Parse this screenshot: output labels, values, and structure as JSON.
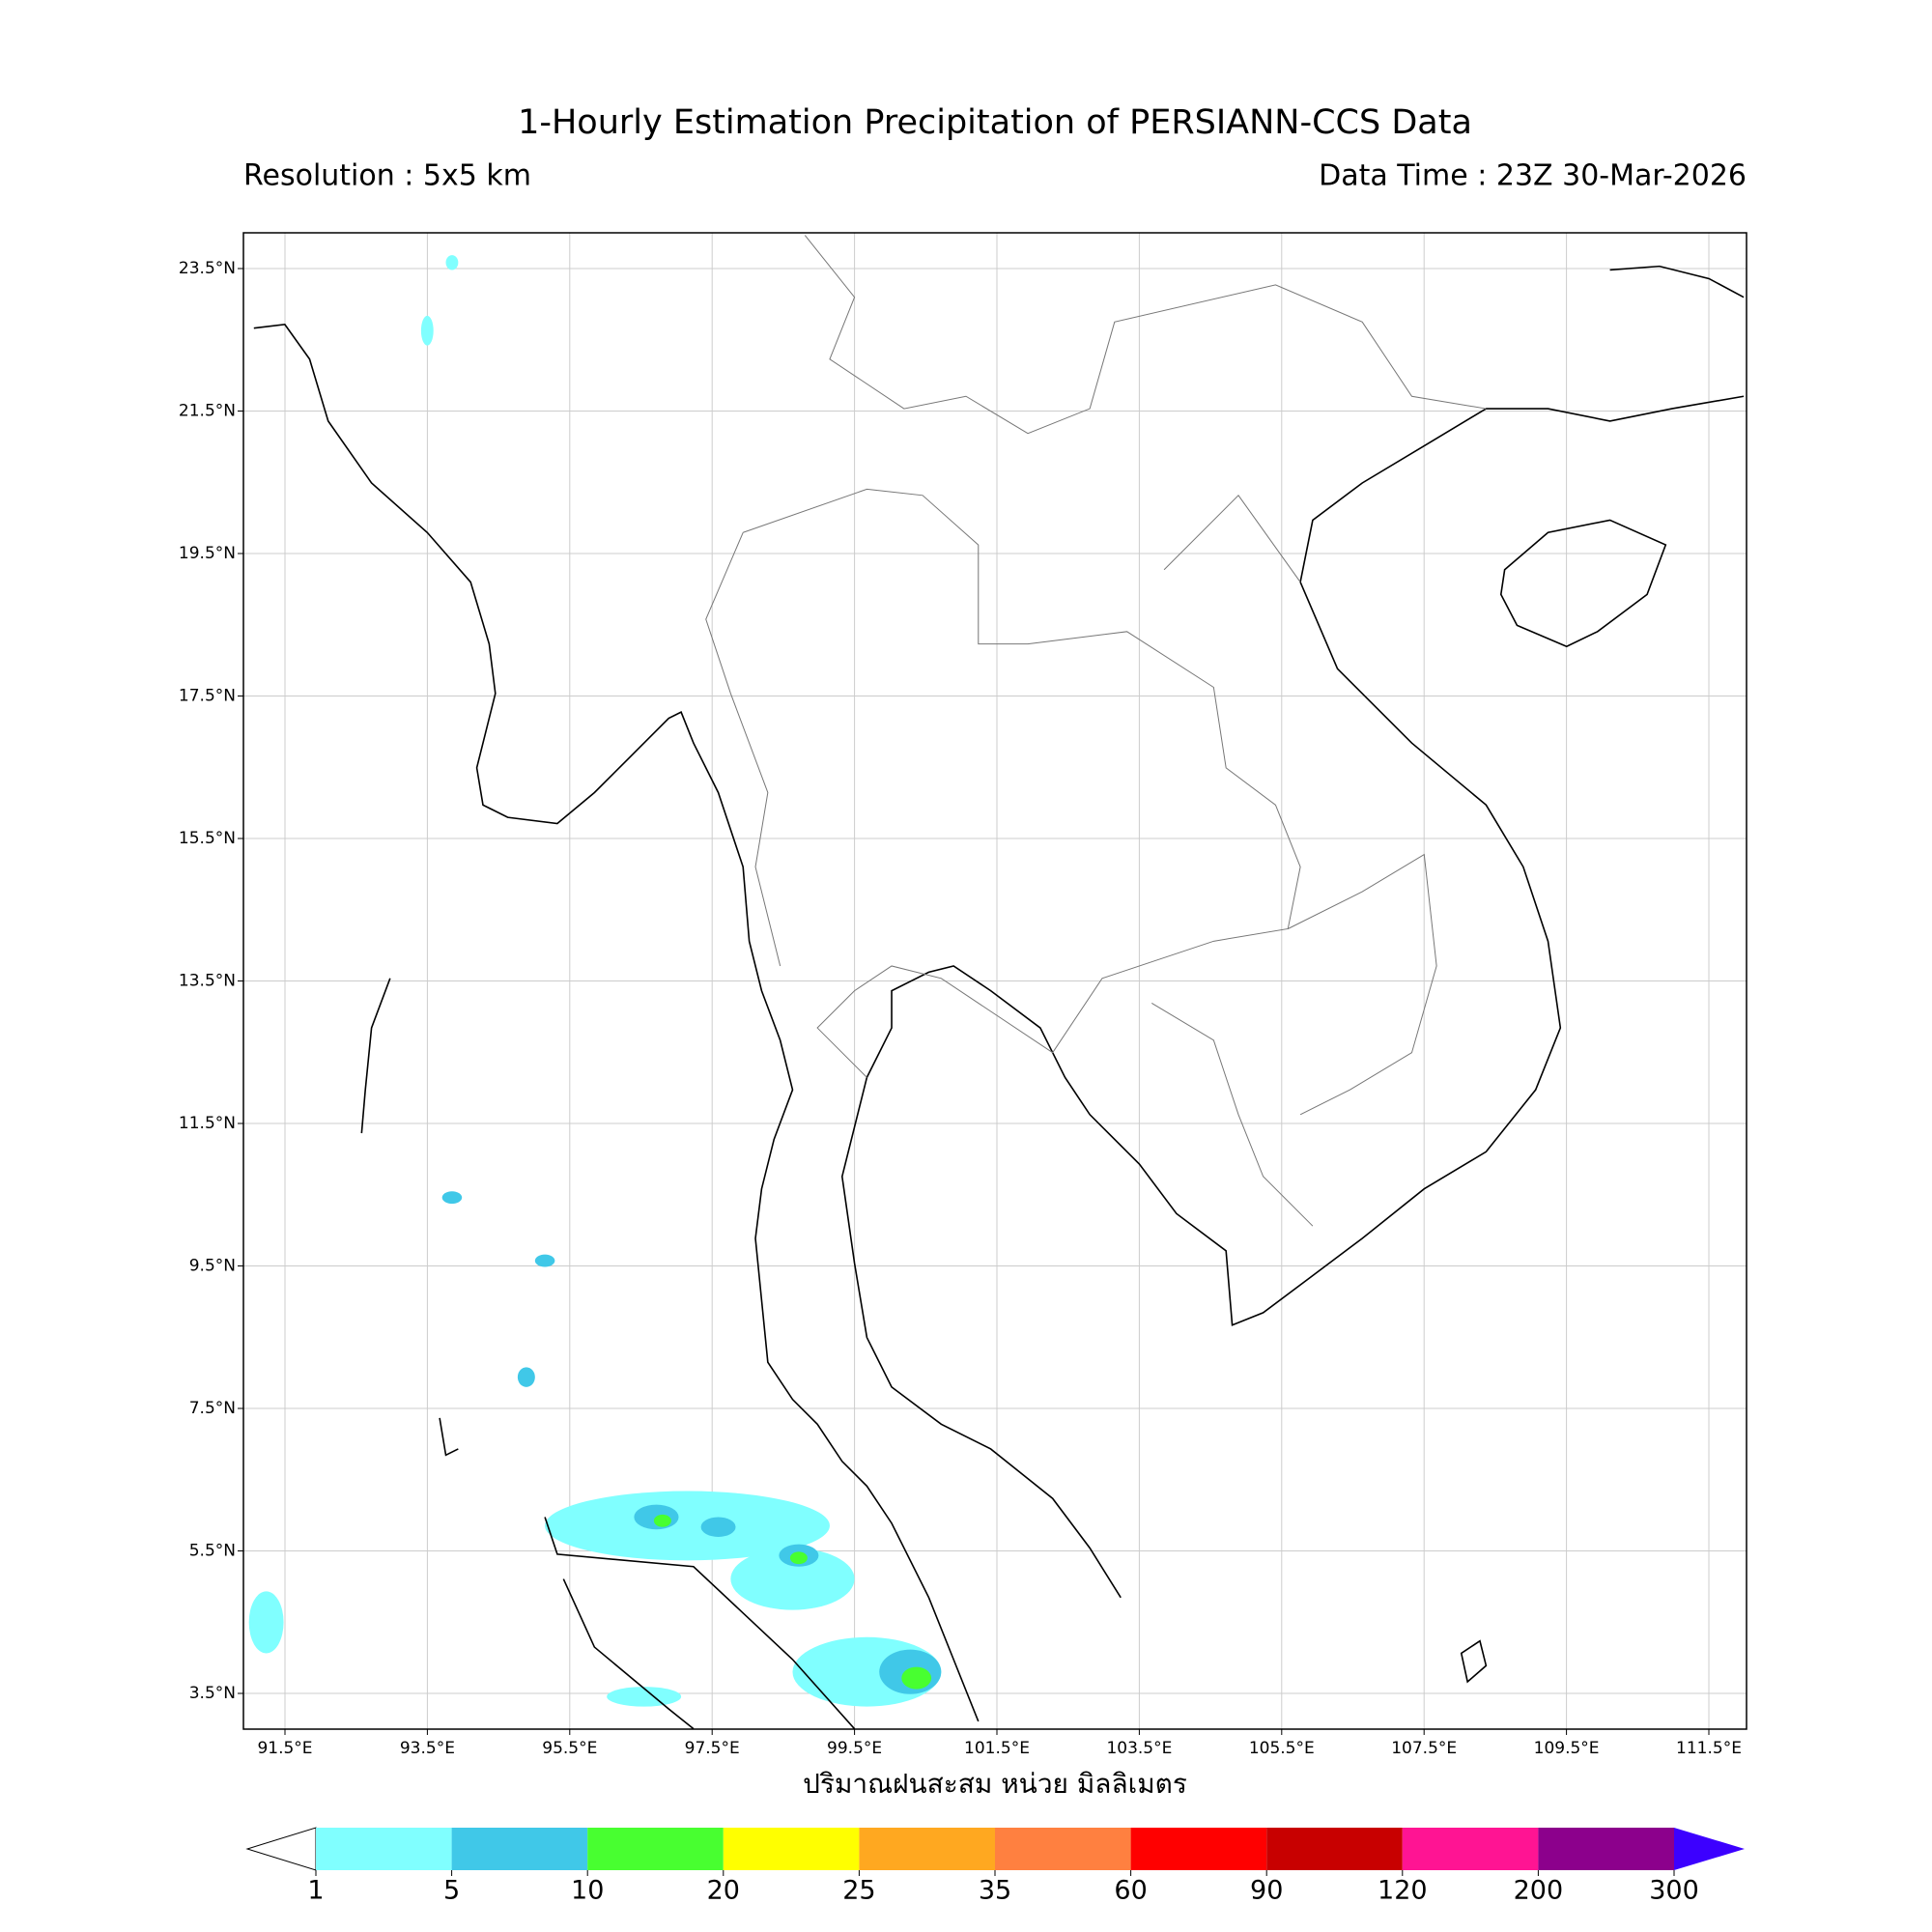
{
  "header": {
    "title": "1-Hourly Estimation Precipitation of PERSIANN-CCS Data",
    "resolution": "Resolution : 5x5 km",
    "data_time": "Data Time : 23Z 30-Mar-2026"
  },
  "map": {
    "lat_ticks": [
      {
        "value": 23.5,
        "label": "23.5°N"
      },
      {
        "value": 21.5,
        "label": "21.5°N"
      },
      {
        "value": 19.5,
        "label": "19.5°N"
      },
      {
        "value": 17.5,
        "label": "17.5°N"
      },
      {
        "value": 15.5,
        "label": "15.5°N"
      },
      {
        "value": 13.5,
        "label": "13.5°N"
      },
      {
        "value": 11.5,
        "label": "11.5°N"
      },
      {
        "value": 9.5,
        "label": "9.5°N"
      },
      {
        "value": 7.5,
        "label": "7.5°N"
      },
      {
        "value": 5.5,
        "label": "5.5°N"
      },
      {
        "value": 3.5,
        "label": "3.5°N"
      }
    ],
    "lon_ticks": [
      {
        "value": 91.5,
        "label": "91.5°E"
      },
      {
        "value": 93.5,
        "label": "93.5°E"
      },
      {
        "value": 95.5,
        "label": "95.5°E"
      },
      {
        "value": 97.5,
        "label": "97.5°E"
      },
      {
        "value": 99.5,
        "label": "99.5°E"
      },
      {
        "value": 101.5,
        "label": "101.5°E"
      },
      {
        "value": 103.5,
        "label": "103.5°E"
      },
      {
        "value": 105.5,
        "label": "105.5°E"
      },
      {
        "value": 107.5,
        "label": "107.5°E"
      },
      {
        "value": 109.5,
        "label": "109.5°E"
      },
      {
        "value": 111.5,
        "label": "111.5°E"
      }
    ],
    "x_label": "ปริมาณฝนสะสม หน่วย มิลลิเมตร"
  },
  "colorbar": {
    "levels": [
      1,
      5,
      10,
      20,
      25,
      35,
      60,
      90,
      120,
      200,
      300
    ],
    "colors": [
      "#80ffff",
      "#40c8e8",
      "#48ff30",
      "#ffff00",
      "#ffa820",
      "#ff8040",
      "#ff0000",
      "#c80000",
      "#ff1493",
      "#8c008c",
      "#3c00ff"
    ],
    "under_color": "#ffffff"
  }
}
